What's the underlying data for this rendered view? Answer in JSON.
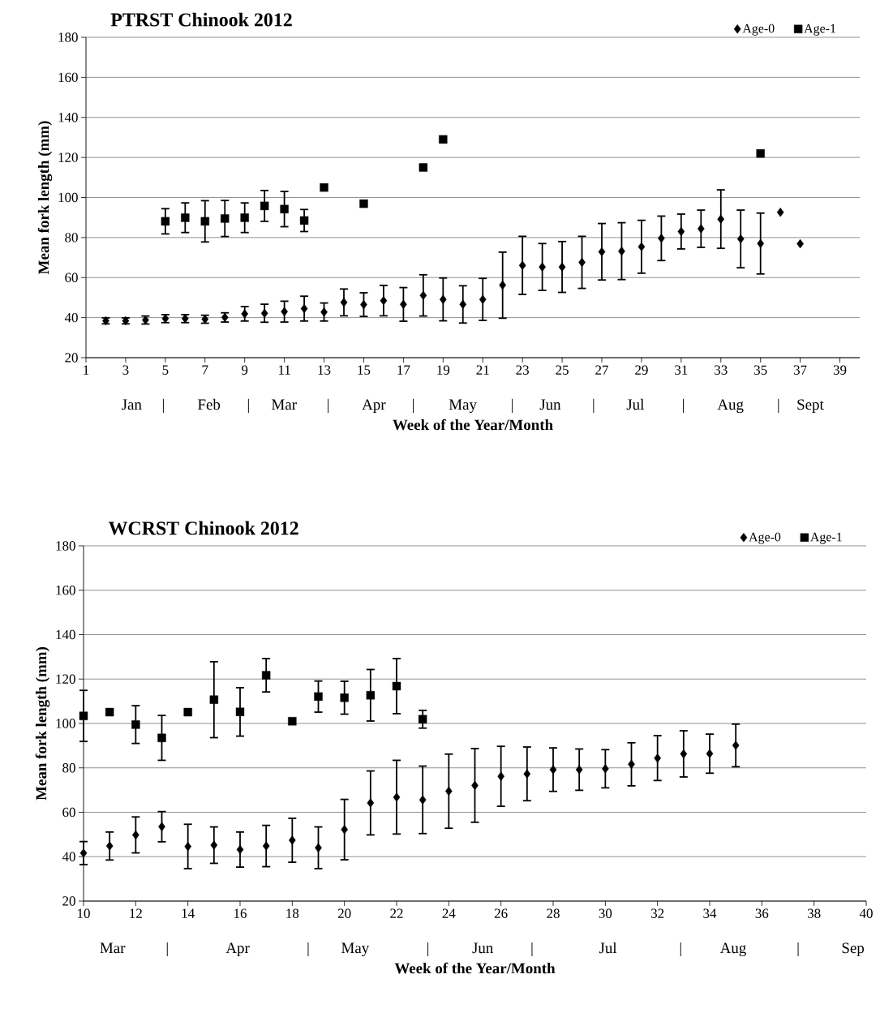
{
  "chart_data": [
    {
      "type": "scatter",
      "title": "PTRST Chinook 2012",
      "xlabel": "Week of the Year/Month",
      "ylabel": "Mean fork length (mm)",
      "xlim": [
        1,
        40
      ],
      "xticks": [
        1,
        3,
        5,
        7,
        9,
        11,
        13,
        15,
        17,
        19,
        21,
        23,
        25,
        27,
        29,
        31,
        33,
        35,
        37,
        39
      ],
      "ylim": [
        20,
        180
      ],
      "yticks": [
        20,
        40,
        60,
        80,
        100,
        120,
        140,
        160,
        180
      ],
      "annotations": [
        "Jan",
        "|",
        "Feb",
        "|",
        "Mar",
        "|",
        "Apr",
        "|",
        "May",
        "|",
        "Jun",
        "|",
        "Jul",
        "|",
        "Aug",
        "|",
        "Sept"
      ],
      "grid": "y",
      "legend": "top right",
      "series": [
        {
          "name": "Age-0",
          "color": "#000000",
          "marker": "diamond",
          "x": [
            2,
            3,
            4,
            5,
            6,
            7,
            8,
            9,
            10,
            11,
            12,
            13,
            14,
            15,
            16,
            17,
            18,
            19,
            20,
            21,
            22,
            23,
            24,
            25,
            26,
            27,
            28,
            29,
            30,
            31,
            32,
            33,
            34,
            35,
            36,
            37
          ],
          "values": [
            38.4,
            38.4,
            38.8,
            39.5,
            39.5,
            39.2,
            40.1,
            41.9,
            42.2,
            43.0,
            44.5,
            42.8,
            47.6,
            46.5,
            48.5,
            46.6,
            51.1,
            49.1,
            46.6,
            49.1,
            56.2,
            66.1,
            65.3,
            65.3,
            67.6,
            72.9,
            73.2,
            75.4,
            79.6,
            83.0,
            84.4,
            89.2,
            79.3,
            77.0,
            92.6,
            76.9
          ],
          "errors": [
            1.5,
            1.5,
            2.0,
            2.0,
            2.0,
            2.0,
            2.3,
            3.6,
            4.5,
            5.2,
            6.2,
            4.5,
            6.7,
            5.9,
            7.6,
            8.4,
            10.3,
            10.7,
            9.3,
            10.5,
            16.5,
            14.5,
            11.7,
            12.7,
            13.0,
            14.1,
            14.2,
            13.2,
            11.1,
            8.7,
            9.3,
            14.6,
            14.4,
            15.2,
            null,
            null
          ]
        },
        {
          "name": "Age-1",
          "color": "#000000",
          "marker": "square",
          "x": [
            5,
            6,
            7,
            8,
            9,
            10,
            11,
            12,
            13,
            15,
            18,
            19,
            35
          ],
          "values": [
            88.1,
            89.9,
            88.1,
            89.5,
            89.9,
            95.8,
            94.2,
            88.5,
            105.0,
            96.9,
            115.0,
            129.0,
            122.0
          ],
          "errors": [
            6.3,
            7.4,
            10.3,
            9.0,
            7.4,
            7.7,
            8.8,
            5.5,
            null,
            null,
            null,
            null,
            null
          ]
        }
      ]
    },
    {
      "type": "scatter",
      "title": "WCRST Chinook 2012",
      "xlabel": "Week of the Year/Month",
      "ylabel": "Mean fork length (mm)",
      "xlim": [
        10,
        40
      ],
      "xticks": [
        10,
        12,
        14,
        16,
        18,
        20,
        22,
        24,
        26,
        28,
        30,
        32,
        34,
        36,
        38,
        40
      ],
      "ylim": [
        20,
        180
      ],
      "yticks": [
        20,
        40,
        60,
        80,
        100,
        120,
        140,
        160,
        180
      ],
      "annotations": [
        "Mar",
        "|",
        "Apr",
        "|",
        "May",
        "|",
        "Jun",
        "|",
        "Jul",
        "|",
        "Aug",
        "|",
        "Sep"
      ],
      "grid": "y",
      "legend": "top right",
      "series": [
        {
          "name": "Age-0",
          "color": "#000000",
          "marker": "diamond",
          "x": [
            10,
            11,
            12,
            13,
            14,
            15,
            16,
            17,
            18,
            19,
            20,
            21,
            22,
            23,
            24,
            25,
            26,
            27,
            28,
            29,
            30,
            31,
            32,
            33,
            34,
            35
          ],
          "values": [
            41.6,
            44.8,
            49.8,
            53.5,
            44.6,
            45.2,
            43.2,
            44.8,
            47.4,
            44.0,
            52.2,
            64.2,
            66.8,
            65.6,
            69.5,
            72.1,
            76.2,
            77.3,
            79.2,
            79.2,
            79.6,
            81.6,
            84.4,
            86.3,
            86.4,
            90.1
          ],
          "errors": [
            5.2,
            6.3,
            8.1,
            6.8,
            10.0,
            8.2,
            7.9,
            9.3,
            9.9,
            9.4,
            13.6,
            14.4,
            16.6,
            15.2,
            16.7,
            16.6,
            13.5,
            12.1,
            9.8,
            9.3,
            8.6,
            9.7,
            10.1,
            10.4,
            8.8,
            9.6
          ]
        },
        {
          "name": "Age-1",
          "color": "#000000",
          "marker": "square",
          "x": [
            10,
            11,
            12,
            13,
            14,
            15,
            16,
            17,
            18,
            19,
            20,
            21,
            22,
            23
          ],
          "values": [
            103.4,
            105.1,
            99.5,
            93.5,
            105.1,
            110.7,
            105.2,
            121.7,
            101.0,
            112.1,
            111.6,
            112.7,
            116.8,
            101.9
          ],
          "errors": [
            11.5,
            null,
            8.5,
            10.1,
            null,
            17.1,
            10.9,
            7.5,
            null,
            7.0,
            7.4,
            11.6,
            12.4,
            4.0
          ]
        }
      ]
    }
  ]
}
